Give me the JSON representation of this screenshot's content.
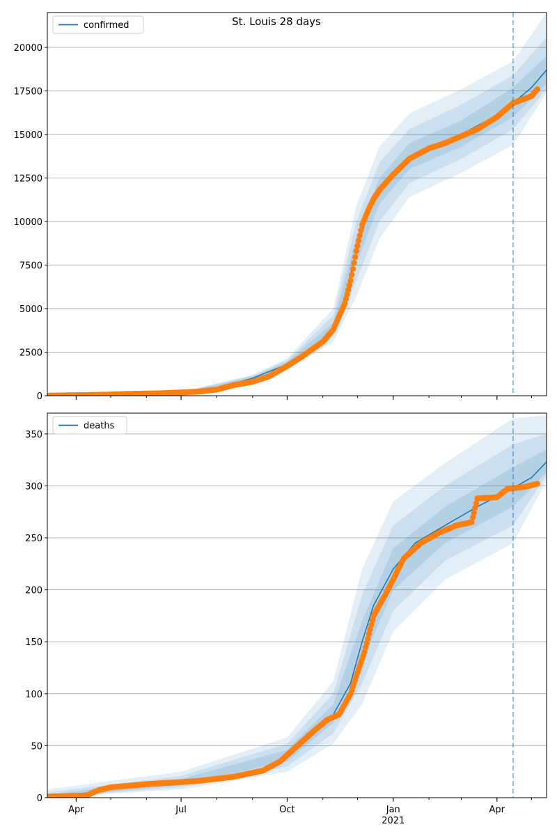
{
  "figure": {
    "title": "St. Louis 28 days"
  },
  "colors": {
    "model_line": "#1f77b4",
    "observed_points": "#ff7f0e",
    "band": "#1f77b4",
    "forecast_marker": "#1f77b4",
    "grid": "#b0b0b0"
  },
  "chart_data": [
    {
      "type": "line",
      "panel": "confirmed",
      "legend": [
        "confirmed"
      ],
      "legend_placement": "top-left",
      "grid": "horizontal",
      "x_range": [
        "2020-03-07",
        "2021-05-14"
      ],
      "ylim": [
        0,
        22000
      ],
      "y_ticks": [
        0,
        2500,
        5000,
        7500,
        10000,
        12500,
        15000,
        17500,
        20000
      ],
      "x_tick_labels": [
        {
          "date": "2020-04-01",
          "label": "Apr"
        },
        {
          "date": "2020-07-01",
          "label": "Jul"
        },
        {
          "date": "2020-10-01",
          "label": "Oct"
        },
        {
          "date": "2021-01-01",
          "label": "Jan"
        },
        {
          "date": "2021-04-01",
          "label": "Apr"
        }
      ],
      "x_year_label": {
        "date": "2021-01-01",
        "label": "2021"
      },
      "forecast_start": "2021-04-15",
      "model": [
        {
          "date": "2020-03-07",
          "y": 10
        },
        {
          "date": "2020-05-01",
          "y": 60
        },
        {
          "date": "2020-07-01",
          "y": 150
        },
        {
          "date": "2020-08-01",
          "y": 450
        },
        {
          "date": "2020-09-01",
          "y": 1000
        },
        {
          "date": "2020-10-01",
          "y": 1800
        },
        {
          "date": "2020-10-25",
          "y": 2800
        },
        {
          "date": "2020-11-10",
          "y": 3900
        },
        {
          "date": "2020-11-20",
          "y": 5600
        },
        {
          "date": "2020-11-30",
          "y": 8300
        },
        {
          "date": "2020-12-10",
          "y": 10500
        },
        {
          "date": "2020-12-20",
          "y": 11700
        },
        {
          "date": "2021-01-01",
          "y": 12800
        },
        {
          "date": "2021-01-15",
          "y": 13700
        },
        {
          "date": "2021-02-01",
          "y": 14300
        },
        {
          "date": "2021-03-01",
          "y": 15000
        },
        {
          "date": "2021-04-01",
          "y": 16100
        },
        {
          "date": "2021-04-15",
          "y": 16800
        },
        {
          "date": "2021-05-01",
          "y": 17700
        },
        {
          "date": "2021-05-14",
          "y": 18700
        }
      ],
      "bands": [
        {
          "level": "inner",
          "points": [
            {
              "date": "2020-03-07",
              "lo": 0,
              "hi": 20
            },
            {
              "date": "2020-07-01",
              "lo": 120,
              "hi": 180
            },
            {
              "date": "2020-09-01",
              "lo": 950,
              "hi": 1100
            },
            {
              "date": "2020-10-01",
              "lo": 1700,
              "hi": 1950
            },
            {
              "date": "2020-11-10",
              "lo": 3700,
              "hi": 4200
            },
            {
              "date": "2020-11-30",
              "lo": 7600,
              "hi": 9100
            },
            {
              "date": "2020-12-20",
              "lo": 11000,
              "hi": 12500
            },
            {
              "date": "2021-01-15",
              "lo": 13000,
              "hi": 14500
            },
            {
              "date": "2021-03-01",
              "lo": 14300,
              "hi": 15800
            },
            {
              "date": "2021-04-15",
              "lo": 16000,
              "hi": 17700
            },
            {
              "date": "2021-05-14",
              "lo": 17900,
              "hi": 19500
            }
          ]
        },
        {
          "level": "middle",
          "points": [
            {
              "date": "2020-03-07",
              "lo": 0,
              "hi": 30
            },
            {
              "date": "2020-07-01",
              "lo": 100,
              "hi": 200
            },
            {
              "date": "2020-09-01",
              "lo": 900,
              "hi": 1150
            },
            {
              "date": "2020-10-01",
              "lo": 1600,
              "hi": 2050
            },
            {
              "date": "2020-11-10",
              "lo": 3400,
              "hi": 4600
            },
            {
              "date": "2020-11-30",
              "lo": 6600,
              "hi": 10000
            },
            {
              "date": "2020-12-20",
              "lo": 10000,
              "hi": 13400
            },
            {
              "date": "2021-01-15",
              "lo": 12200,
              "hi": 15300
            },
            {
              "date": "2021-03-01",
              "lo": 13600,
              "hi": 16700
            },
            {
              "date": "2021-04-15",
              "lo": 15300,
              "hi": 18400
            },
            {
              "date": "2021-05-14",
              "lo": 17600,
              "hi": 20600
            }
          ]
        },
        {
          "level": "outer",
          "points": [
            {
              "date": "2020-03-07",
              "lo": 0,
              "hi": 40
            },
            {
              "date": "2020-07-01",
              "lo": 80,
              "hi": 230
            },
            {
              "date": "2020-09-01",
              "lo": 850,
              "hi": 1200
            },
            {
              "date": "2020-10-01",
              "lo": 1500,
              "hi": 2150
            },
            {
              "date": "2020-11-10",
              "lo": 3100,
              "hi": 5000
            },
            {
              "date": "2020-11-30",
              "lo": 5700,
              "hi": 10900
            },
            {
              "date": "2020-12-20",
              "lo": 9000,
              "hi": 14300
            },
            {
              "date": "2021-01-15",
              "lo": 11400,
              "hi": 16200
            },
            {
              "date": "2021-03-01",
              "lo": 12800,
              "hi": 17600
            },
            {
              "date": "2021-04-15",
              "lo": 14400,
              "hi": 19200
            },
            {
              "date": "2021-05-14",
              "lo": 17400,
              "hi": 22000
            }
          ]
        }
      ],
      "observed": [
        {
          "date": "2020-03-07",
          "y": 5
        },
        {
          "date": "2020-04-15",
          "y": 40
        },
        {
          "date": "2020-05-15",
          "y": 100
        },
        {
          "date": "2020-06-15",
          "y": 140
        },
        {
          "date": "2020-07-15",
          "y": 230
        },
        {
          "date": "2020-08-01",
          "y": 350
        },
        {
          "date": "2020-08-15",
          "y": 600
        },
        {
          "date": "2020-09-01",
          "y": 800
        },
        {
          "date": "2020-09-15",
          "y": 1100
        },
        {
          "date": "2020-10-01",
          "y": 1700
        },
        {
          "date": "2020-10-15",
          "y": 2300
        },
        {
          "date": "2020-11-01",
          "y": 3100
        },
        {
          "date": "2020-11-10",
          "y": 3800
        },
        {
          "date": "2020-11-20",
          "y": 5300
        },
        {
          "date": "2020-11-25",
          "y": 6600
        },
        {
          "date": "2020-11-30",
          "y": 8300
        },
        {
          "date": "2020-12-05",
          "y": 9800
        },
        {
          "date": "2020-12-10",
          "y": 10600
        },
        {
          "date": "2020-12-15",
          "y": 11300
        },
        {
          "date": "2020-12-20",
          "y": 11800
        },
        {
          "date": "2021-01-01",
          "y": 12700
        },
        {
          "date": "2021-01-15",
          "y": 13600
        },
        {
          "date": "2021-02-01",
          "y": 14200
        },
        {
          "date": "2021-02-15",
          "y": 14500
        },
        {
          "date": "2021-03-01",
          "y": 14900
        },
        {
          "date": "2021-03-15",
          "y": 15300
        },
        {
          "date": "2021-04-01",
          "y": 16000
        },
        {
          "date": "2021-04-15",
          "y": 16800
        },
        {
          "date": "2021-05-01",
          "y": 17200
        },
        {
          "date": "2021-05-06",
          "y": 17600
        }
      ]
    },
    {
      "type": "line",
      "panel": "deaths",
      "legend": [
        "deaths"
      ],
      "legend_placement": "top-left",
      "grid": "horizontal",
      "x_range": [
        "2020-03-07",
        "2021-05-14"
      ],
      "ylim": [
        0,
        370
      ],
      "y_ticks": [
        0,
        50,
        100,
        150,
        200,
        250,
        300,
        350
      ],
      "x_tick_labels": [
        {
          "date": "2020-04-01",
          "label": "Apr"
        },
        {
          "date": "2020-07-01",
          "label": "Jul"
        },
        {
          "date": "2020-10-01",
          "label": "Oct"
        },
        {
          "date": "2021-01-01",
          "label": "Jan"
        },
        {
          "date": "2021-04-01",
          "label": "Apr"
        }
      ],
      "x_year_label": {
        "date": "2021-01-01",
        "label": "2021"
      },
      "forecast_start": "2021-04-15",
      "model": [
        {
          "date": "2020-03-07",
          "y": 1
        },
        {
          "date": "2020-04-15",
          "y": 5
        },
        {
          "date": "2020-05-15",
          "y": 12
        },
        {
          "date": "2020-07-01",
          "y": 15
        },
        {
          "date": "2020-08-15",
          "y": 20
        },
        {
          "date": "2020-09-15",
          "y": 27
        },
        {
          "date": "2020-10-01",
          "y": 40
        },
        {
          "date": "2020-10-20",
          "y": 60
        },
        {
          "date": "2020-11-10",
          "y": 80
        },
        {
          "date": "2020-11-25",
          "y": 110
        },
        {
          "date": "2020-12-05",
          "y": 150
        },
        {
          "date": "2020-12-15",
          "y": 185
        },
        {
          "date": "2021-01-01",
          "y": 220
        },
        {
          "date": "2021-01-20",
          "y": 245
        },
        {
          "date": "2021-02-15",
          "y": 262
        },
        {
          "date": "2021-03-15",
          "y": 280
        },
        {
          "date": "2021-04-15",
          "y": 298
        },
        {
          "date": "2021-05-01",
          "y": 308
        },
        {
          "date": "2021-05-14",
          "y": 323
        }
      ],
      "bands": [
        {
          "level": "inner",
          "points": [
            {
              "date": "2020-03-07",
              "lo": 0,
              "hi": 3
            },
            {
              "date": "2020-07-01",
              "lo": 12,
              "hi": 18
            },
            {
              "date": "2020-10-01",
              "lo": 35,
              "hi": 46
            },
            {
              "date": "2020-11-10",
              "lo": 72,
              "hi": 90
            },
            {
              "date": "2020-12-05",
              "lo": 130,
              "hi": 170
            },
            {
              "date": "2021-01-01",
              "lo": 200,
              "hi": 240
            },
            {
              "date": "2021-02-15",
              "lo": 245,
              "hi": 280
            },
            {
              "date": "2021-04-15",
              "lo": 280,
              "hi": 318
            },
            {
              "date": "2021-05-14",
              "lo": 313,
              "hi": 335
            }
          ]
        },
        {
          "level": "middle",
          "points": [
            {
              "date": "2020-03-07",
              "lo": 0,
              "hi": 5
            },
            {
              "date": "2020-07-01",
              "lo": 10,
              "hi": 21
            },
            {
              "date": "2020-10-01",
              "lo": 30,
              "hi": 52
            },
            {
              "date": "2020-11-10",
              "lo": 62,
              "hi": 100
            },
            {
              "date": "2020-12-05",
              "lo": 110,
              "hi": 195
            },
            {
              "date": "2021-01-01",
              "lo": 180,
              "hi": 262
            },
            {
              "date": "2021-02-15",
              "lo": 228,
              "hi": 300
            },
            {
              "date": "2021-04-15",
              "lo": 262,
              "hi": 340
            },
            {
              "date": "2021-05-14",
              "lo": 310,
              "hi": 350
            }
          ]
        },
        {
          "level": "outer",
          "points": [
            {
              "date": "2020-03-07",
              "lo": 0,
              "hi": 8
            },
            {
              "date": "2020-07-01",
              "lo": 8,
              "hi": 25
            },
            {
              "date": "2020-10-01",
              "lo": 25,
              "hi": 58
            },
            {
              "date": "2020-11-10",
              "lo": 52,
              "hi": 112
            },
            {
              "date": "2020-12-05",
              "lo": 90,
              "hi": 220
            },
            {
              "date": "2021-01-01",
              "lo": 160,
              "hi": 285
            },
            {
              "date": "2021-02-15",
              "lo": 210,
              "hi": 322
            },
            {
              "date": "2021-04-15",
              "lo": 245,
              "hi": 365
            },
            {
              "date": "2021-05-14",
              "lo": 305,
              "hi": 368
            }
          ]
        }
      ],
      "observed": [
        {
          "date": "2020-03-07",
          "y": 1
        },
        {
          "date": "2020-04-10",
          "y": 2
        },
        {
          "date": "2020-04-20",
          "y": 7
        },
        {
          "date": "2020-05-01",
          "y": 10
        },
        {
          "date": "2020-06-01",
          "y": 13
        },
        {
          "date": "2020-07-15",
          "y": 16
        },
        {
          "date": "2020-08-15",
          "y": 20
        },
        {
          "date": "2020-09-10",
          "y": 26
        },
        {
          "date": "2020-09-25",
          "y": 35
        },
        {
          "date": "2020-10-10",
          "y": 50
        },
        {
          "date": "2020-10-25",
          "y": 65
        },
        {
          "date": "2020-11-05",
          "y": 75
        },
        {
          "date": "2020-11-15",
          "y": 80
        },
        {
          "date": "2020-11-25",
          "y": 100
        },
        {
          "date": "2020-12-01",
          "y": 120
        },
        {
          "date": "2020-12-07",
          "y": 140
        },
        {
          "date": "2020-12-15",
          "y": 175
        },
        {
          "date": "2020-12-25",
          "y": 195
        },
        {
          "date": "2021-01-01",
          "y": 210
        },
        {
          "date": "2021-01-10",
          "y": 230
        },
        {
          "date": "2021-01-25",
          "y": 245
        },
        {
          "date": "2021-02-10",
          "y": 255
        },
        {
          "date": "2021-02-25",
          "y": 262
        },
        {
          "date": "2021-03-10",
          "y": 265
        },
        {
          "date": "2021-03-15",
          "y": 288
        },
        {
          "date": "2021-04-01",
          "y": 289
        },
        {
          "date": "2021-04-10",
          "y": 297
        },
        {
          "date": "2021-04-25",
          "y": 299
        },
        {
          "date": "2021-05-06",
          "y": 302
        }
      ]
    }
  ]
}
